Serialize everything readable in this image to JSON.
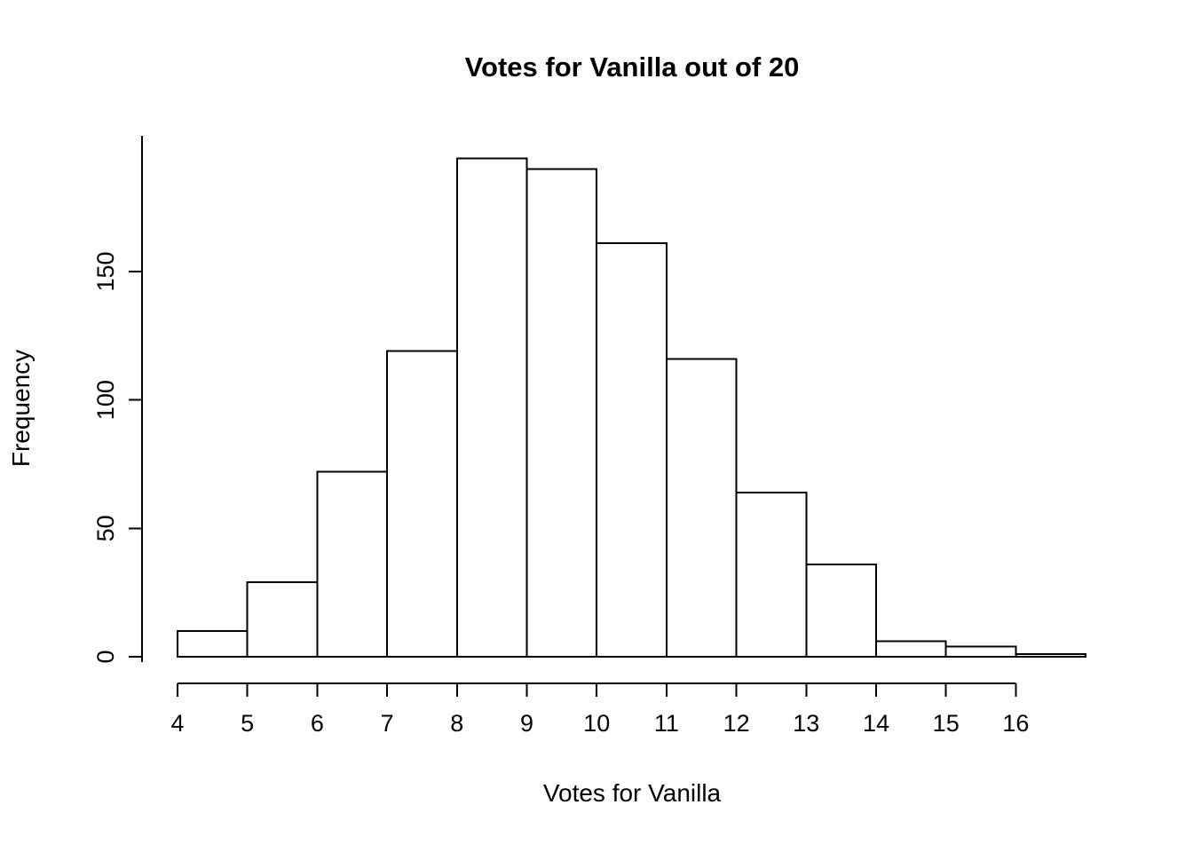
{
  "chart_data": {
    "type": "bar",
    "subtype": "histogram",
    "title": "Votes for Vanilla out of 20",
    "xlabel": "Votes for Vanilla",
    "ylabel": "Frequency",
    "bin_edges": [
      4,
      5,
      6,
      7,
      8,
      9,
      10,
      11,
      12,
      13,
      14,
      15,
      16,
      17
    ],
    "counts": [
      10,
      29,
      72,
      119,
      194,
      190,
      161,
      116,
      64,
      36,
      6,
      4,
      1
    ],
    "x_ticks": [
      4,
      5,
      6,
      7,
      8,
      9,
      10,
      11,
      12,
      13,
      14,
      15,
      16
    ],
    "y_ticks": [
      0,
      50,
      100,
      150
    ],
    "xlim": [
      4,
      17
    ],
    "ylim": [
      0,
      200
    ],
    "grid": false,
    "legend": false,
    "bar_fill": "#ffffff",
    "bar_stroke": "#000000",
    "axis_color": "#000000",
    "background": "#ffffff"
  }
}
